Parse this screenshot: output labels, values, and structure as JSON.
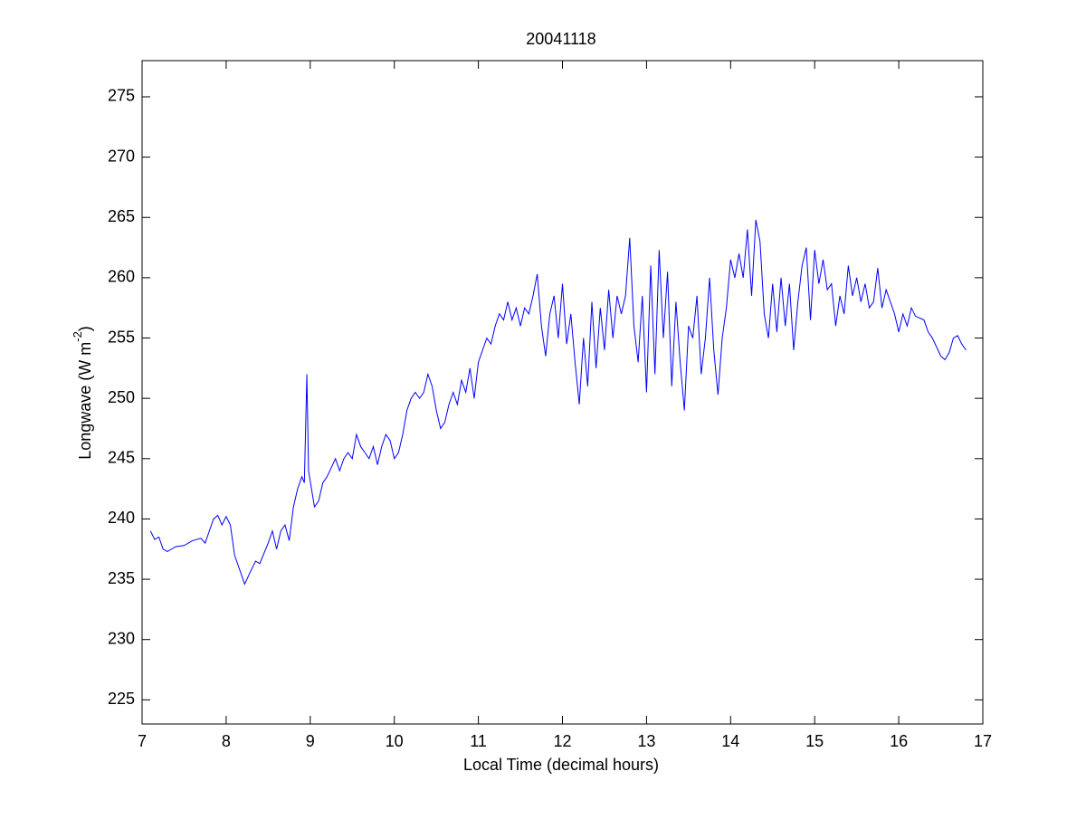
{
  "chart_data": {
    "type": "line",
    "title": "20041118",
    "xlabel": "Local Time (decimal hours)",
    "ylabel": [
      "Longwave (W m",
      "-2",
      ")"
    ],
    "xlim": [
      7,
      17
    ],
    "ylim": [
      223,
      278
    ],
    "xticks": [
      7,
      8,
      9,
      10,
      11,
      12,
      13,
      14,
      15,
      16,
      17
    ],
    "yticks": [
      225,
      230,
      235,
      240,
      245,
      250,
      255,
      260,
      265,
      270,
      275
    ],
    "x": [
      7.1,
      7.15,
      7.2,
      7.25,
      7.3,
      7.35,
      7.4,
      7.5,
      7.6,
      7.7,
      7.75,
      7.8,
      7.85,
      7.9,
      7.95,
      8.0,
      8.05,
      8.1,
      8.15,
      8.22,
      8.3,
      8.35,
      8.4,
      8.5,
      8.55,
      8.6,
      8.65,
      8.7,
      8.75,
      8.8,
      8.85,
      8.9,
      8.93,
      8.96,
      8.98,
      9.05,
      9.1,
      9.15,
      9.2,
      9.3,
      9.35,
      9.4,
      9.45,
      9.5,
      9.55,
      9.6,
      9.65,
      9.7,
      9.75,
      9.8,
      9.85,
      9.9,
      9.95,
      10.0,
      10.05,
      10.1,
      10.15,
      10.2,
      10.25,
      10.3,
      10.35,
      10.4,
      10.45,
      10.5,
      10.55,
      10.6,
      10.65,
      10.7,
      10.75,
      10.8,
      10.85,
      10.9,
      10.95,
      11.0,
      11.05,
      11.1,
      11.15,
      11.2,
      11.25,
      11.3,
      11.35,
      11.4,
      11.45,
      11.5,
      11.55,
      11.6,
      11.65,
      11.7,
      11.75,
      11.8,
      11.85,
      11.9,
      11.95,
      12.0,
      12.05,
      12.1,
      12.15,
      12.2,
      12.25,
      12.3,
      12.35,
      12.4,
      12.45,
      12.5,
      12.55,
      12.6,
      12.65,
      12.7,
      12.75,
      12.8,
      12.85,
      12.9,
      12.95,
      13.0,
      13.05,
      13.1,
      13.15,
      13.2,
      13.25,
      13.3,
      13.35,
      13.4,
      13.45,
      13.5,
      13.55,
      13.6,
      13.65,
      13.7,
      13.75,
      13.8,
      13.85,
      13.9,
      13.95,
      14.0,
      14.05,
      14.1,
      14.15,
      14.2,
      14.25,
      14.3,
      14.35,
      14.4,
      14.45,
      14.5,
      14.55,
      14.6,
      14.65,
      14.7,
      14.75,
      14.8,
      14.85,
      14.9,
      14.95,
      15.0,
      15.05,
      15.1,
      15.15,
      15.2,
      15.25,
      15.3,
      15.35,
      15.4,
      15.45,
      15.5,
      15.55,
      15.6,
      15.65,
      15.7,
      15.75,
      15.8,
      15.85,
      15.9,
      15.95,
      16.0,
      16.05,
      16.1,
      16.15,
      16.2,
      16.3,
      16.35,
      16.4,
      16.5,
      16.55,
      16.6,
      16.65,
      16.7,
      16.75,
      16.8
    ],
    "series": [
      {
        "color": "#0000ff",
        "values": [
          239,
          238.3,
          238.5,
          237.5,
          237.3,
          237.5,
          237.7,
          237.8,
          238.2,
          238.4,
          238,
          239,
          240,
          240.3,
          239.5,
          240.2,
          239.5,
          237,
          236,
          234.6,
          235.8,
          236.5,
          236.3,
          238,
          239,
          237.5,
          239,
          239.5,
          238.2,
          241,
          242.5,
          243.5,
          243,
          252,
          244,
          241,
          241.5,
          243,
          243.5,
          245,
          244,
          245,
          245.5,
          245,
          247,
          246,
          245.5,
          245,
          246,
          244.5,
          246,
          247,
          246.5,
          245,
          245.5,
          247,
          249,
          250,
          250.5,
          250,
          250.5,
          252,
          251,
          249,
          247.5,
          248,
          249.5,
          250.5,
          249.5,
          251.5,
          250.5,
          252.5,
          250,
          253,
          254,
          255,
          254.5,
          256,
          257,
          256.5,
          258,
          256.5,
          257.5,
          256,
          257.5,
          257,
          258.5,
          260.3,
          256,
          253.5,
          257,
          258.5,
          255,
          259.5,
          254.5,
          257,
          253,
          249.5,
          255,
          251,
          258,
          252.5,
          257.5,
          254,
          259,
          255,
          258.5,
          257,
          258.5,
          263.3,
          256,
          253,
          258.5,
          250.5,
          261,
          252,
          262.3,
          255,
          260.5,
          251,
          258,
          253,
          249,
          256,
          255,
          258.5,
          252,
          255,
          260,
          254,
          250.3,
          255,
          257.5,
          261.5,
          260,
          262,
          260,
          264,
          258.5,
          264.8,
          263,
          257,
          255,
          259.5,
          255.5,
          260,
          256,
          259.5,
          254,
          258,
          261,
          262.5,
          256.5,
          262.3,
          259.5,
          261.5,
          259,
          259.5,
          256,
          258.5,
          257,
          261,
          258.5,
          260,
          258,
          259.5,
          257.5,
          258,
          260.8,
          257.5,
          259,
          258,
          257,
          255.5,
          257,
          256,
          257.5,
          256.8,
          256.5,
          255.5,
          255,
          253.5,
          253.2,
          253.8,
          255,
          255.2,
          254.5,
          254
        ]
      }
    ]
  }
}
